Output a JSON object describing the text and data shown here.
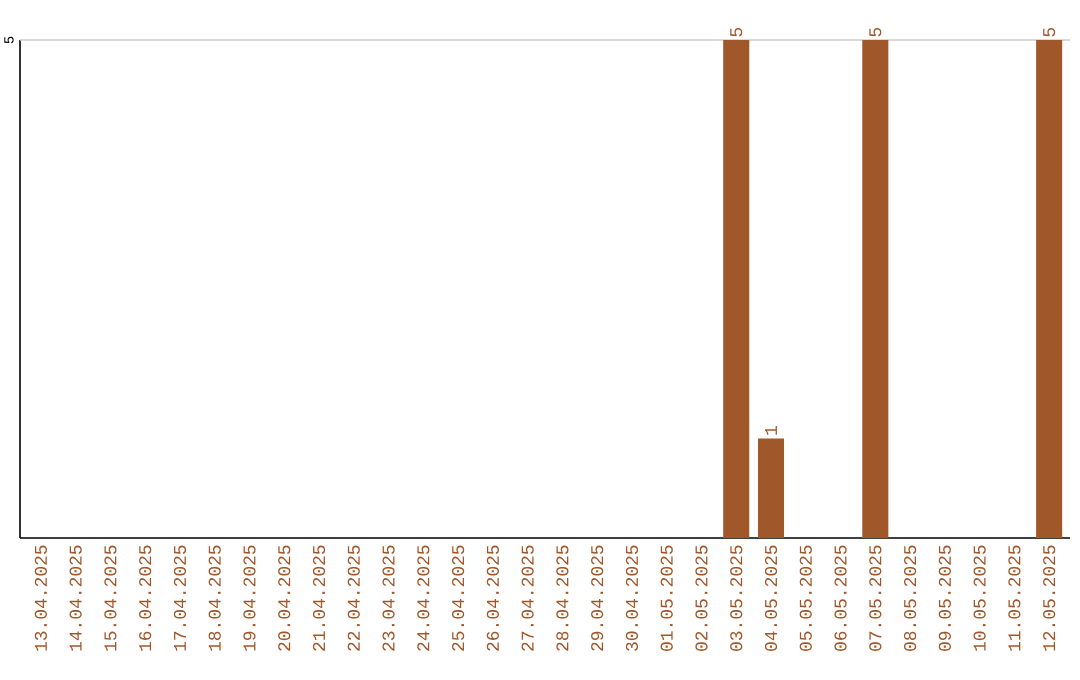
{
  "chart_data": {
    "type": "bar",
    "categories": [
      "13.04.2025",
      "14.04.2025",
      "15.04.2025",
      "16.04.2025",
      "17.04.2025",
      "18.04.2025",
      "19.04.2025",
      "20.04.2025",
      "21.04.2025",
      "22.04.2025",
      "23.04.2025",
      "24.04.2025",
      "25.04.2025",
      "26.04.2025",
      "27.04.2025",
      "28.04.2025",
      "29.04.2025",
      "30.04.2025",
      "01.05.2025",
      "02.05.2025",
      "03.05.2025",
      "04.05.2025",
      "05.05.2025",
      "06.05.2025",
      "07.05.2025",
      "08.05.2025",
      "09.05.2025",
      "10.05.2025",
      "11.05.2025",
      "12.05.2025"
    ],
    "values": [
      null,
      null,
      null,
      null,
      null,
      null,
      null,
      null,
      null,
      null,
      null,
      null,
      null,
      null,
      null,
      null,
      null,
      null,
      null,
      null,
      5,
      1,
      null,
      null,
      5,
      null,
      null,
      null,
      null,
      5
    ],
    "value_labels": [
      null,
      null,
      null,
      null,
      null,
      null,
      null,
      null,
      null,
      null,
      null,
      null,
      null,
      null,
      null,
      null,
      null,
      null,
      null,
      null,
      "5",
      "1",
      null,
      null,
      "5",
      null,
      null,
      null,
      null,
      "5"
    ],
    "color": "#a0572a",
    "ylim": [
      0,
      5
    ],
    "yticks": [
      5
    ],
    "ref_lines": [
      {
        "axis": "y",
        "value": 5,
        "color": "#cccccc"
      }
    ]
  }
}
